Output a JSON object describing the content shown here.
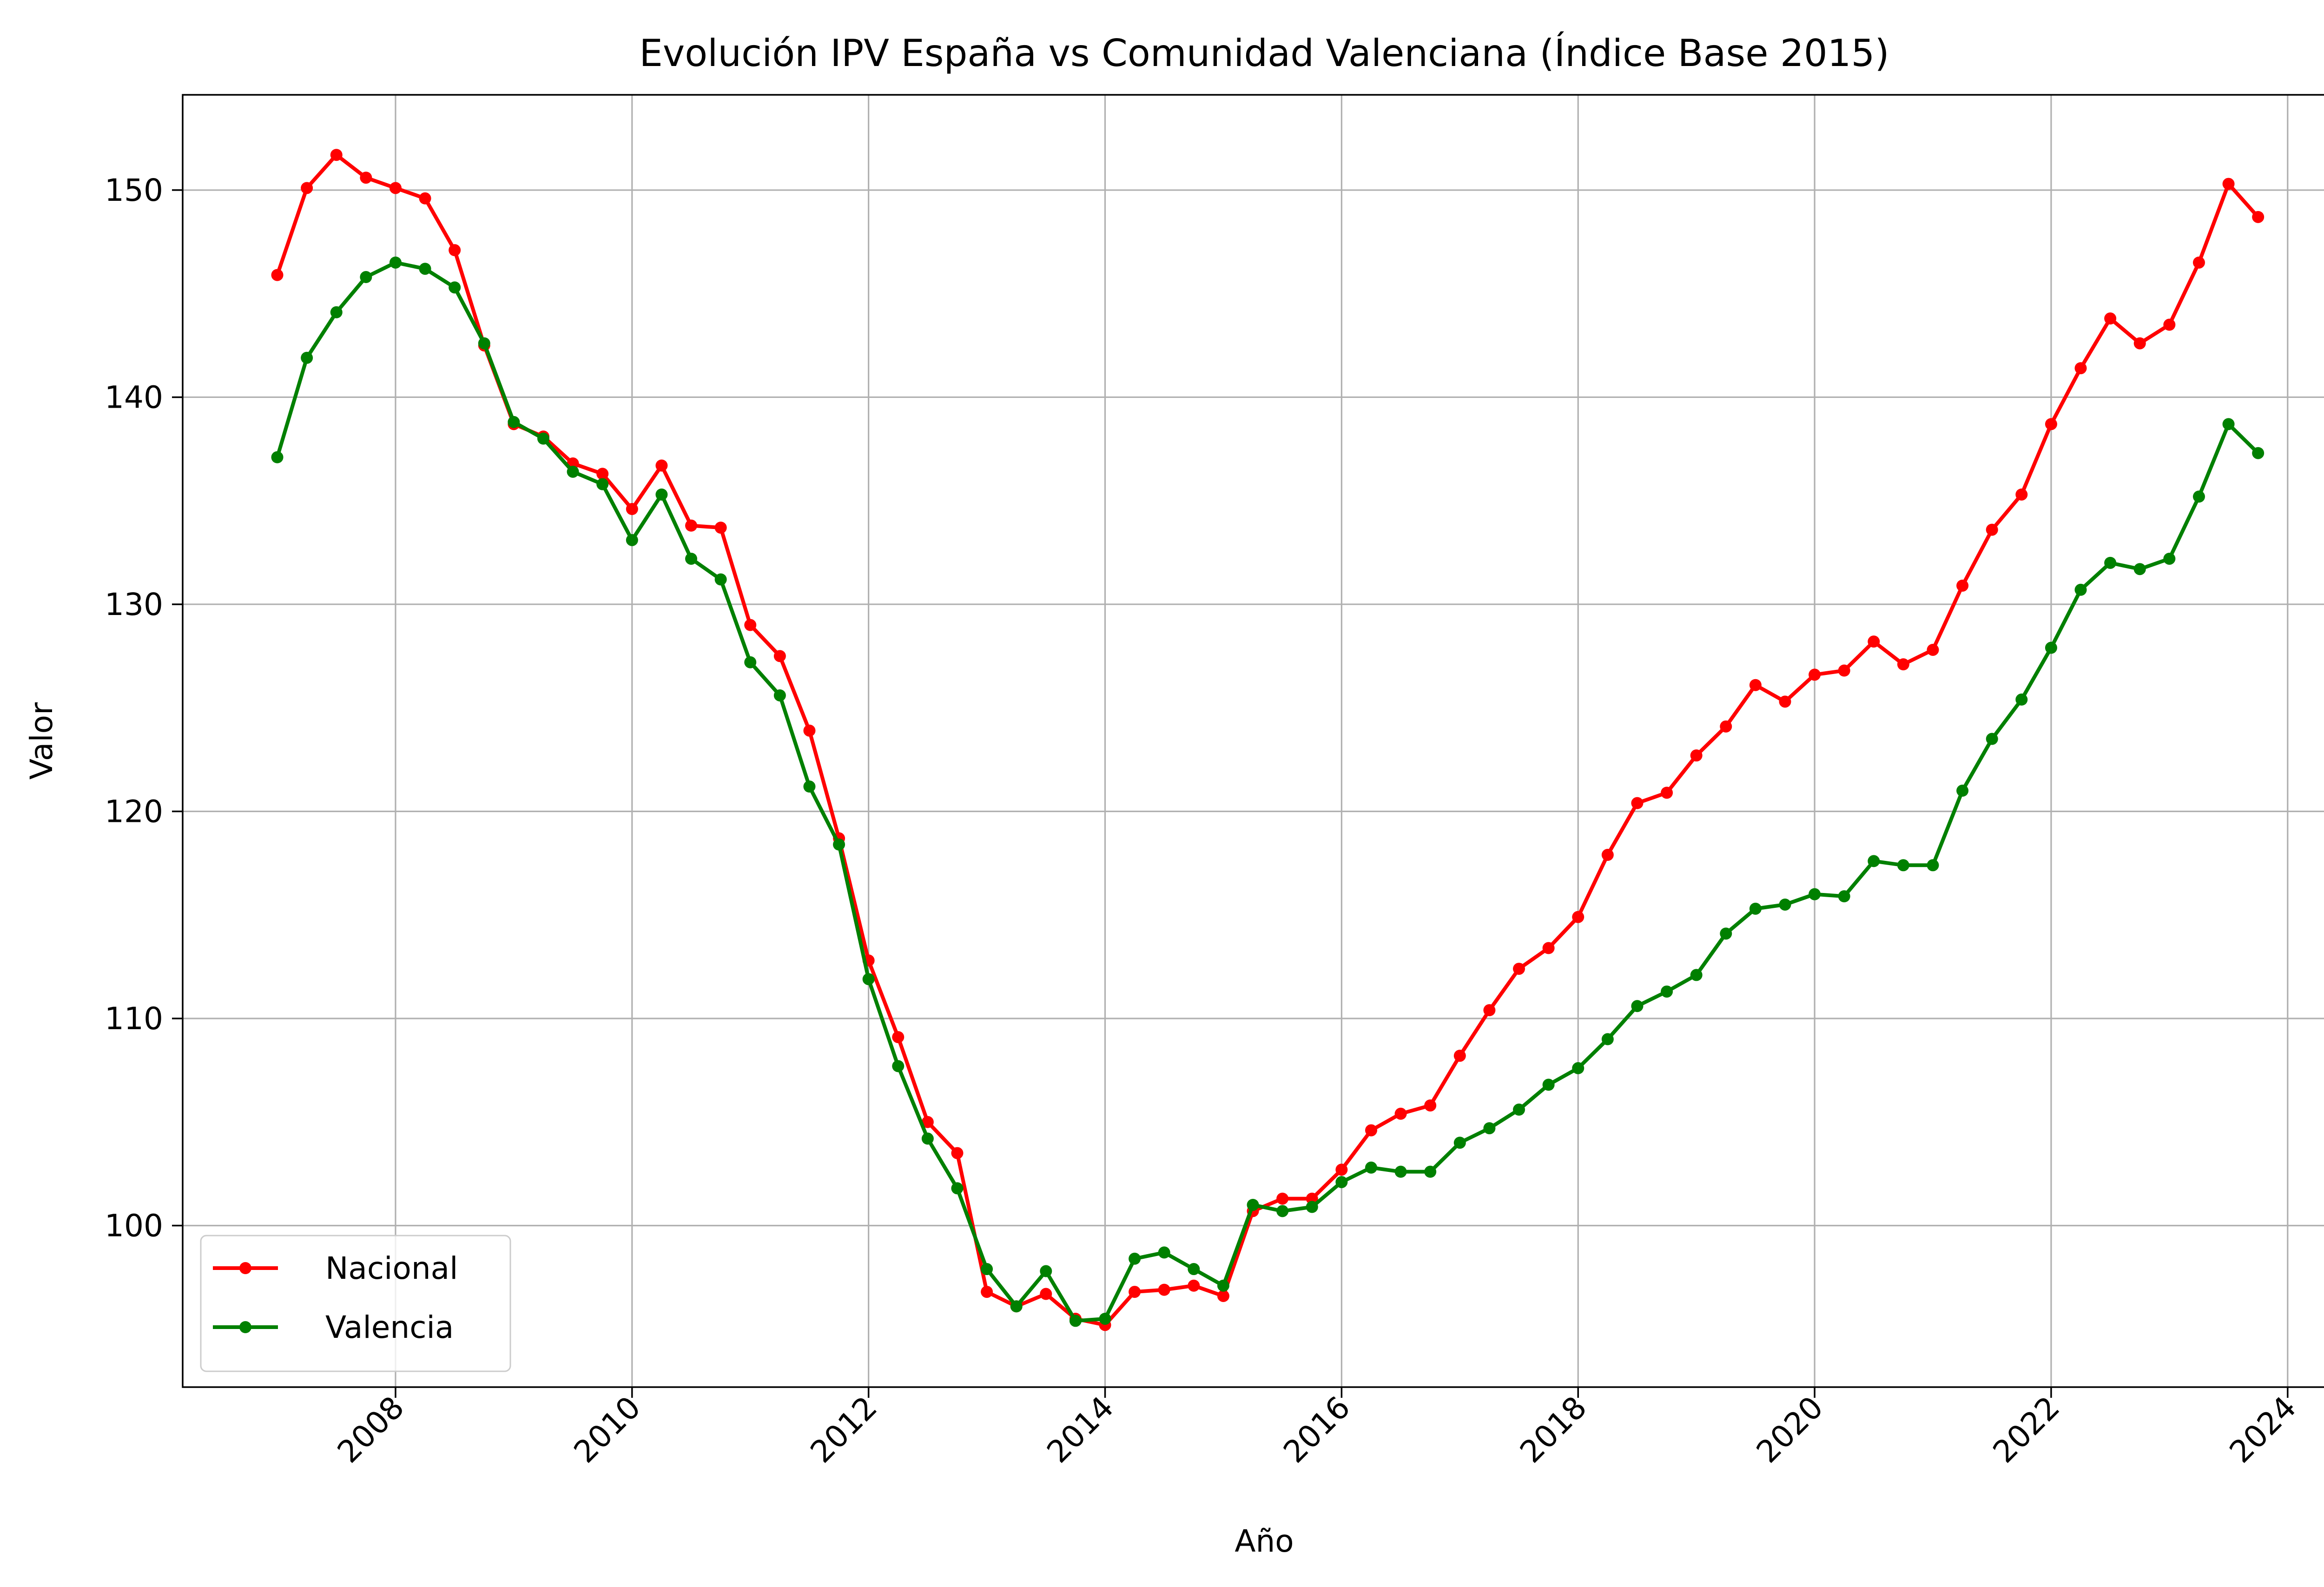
{
  "chart_data": {
    "type": "line",
    "title": "Evolución IPV España vs Comunidad Valenciana (Índice Base 2015)",
    "xlabel": "Año",
    "ylabel": "Valor",
    "xlim": [
      2006.2,
      2024.5
    ],
    "ylim": [
      92.2,
      154.6
    ],
    "x_ticks": [
      2008,
      2010,
      2012,
      2014,
      2016,
      2018,
      2020,
      2022,
      2024
    ],
    "x_tick_labels": [
      "2008",
      "2010",
      "2012",
      "2014",
      "2016",
      "2018",
      "2020",
      "2022",
      "2024"
    ],
    "y_ticks": [
      100,
      110,
      120,
      130,
      140,
      150
    ],
    "y_tick_labels": [
      "100",
      "110",
      "120",
      "130",
      "140",
      "150"
    ],
    "grid": true,
    "legend_position": "lower-left",
    "x": [
      2007.0,
      2007.25,
      2007.5,
      2007.75,
      2008.0,
      2008.25,
      2008.5,
      2008.75,
      2009.0,
      2009.25,
      2009.5,
      2009.75,
      2010.0,
      2010.25,
      2010.5,
      2010.75,
      2011.0,
      2011.25,
      2011.5,
      2011.75,
      2012.0,
      2012.25,
      2012.5,
      2012.75,
      2013.0,
      2013.25,
      2013.5,
      2013.75,
      2014.0,
      2014.25,
      2014.5,
      2014.75,
      2015.0,
      2015.25,
      2015.5,
      2015.75,
      2016.0,
      2016.25,
      2016.5,
      2016.75,
      2017.0,
      2017.25,
      2017.5,
      2017.75,
      2018.0,
      2018.25,
      2018.5,
      2018.75,
      2019.0,
      2019.25,
      2019.5,
      2019.75,
      2020.0,
      2020.25,
      2020.5,
      2020.75,
      2021.0,
      2021.25,
      2021.5,
      2021.75,
      2022.0,
      2022.25,
      2022.5,
      2022.75,
      2023.0,
      2023.25,
      2023.5,
      2023.75
    ],
    "series": [
      {
        "name": "Nacional",
        "color": "#ff0000",
        "values": [
          145.9,
          150.1,
          151.7,
          150.6,
          150.1,
          149.6,
          147.1,
          142.5,
          138.7,
          138.1,
          136.8,
          136.3,
          134.6,
          136.7,
          133.8,
          133.7,
          129.0,
          127.5,
          123.9,
          118.7,
          112.8,
          109.1,
          105.0,
          103.5,
          96.8,
          96.1,
          96.7,
          95.5,
          95.2,
          96.8,
          96.9,
          97.1,
          96.6,
          100.7,
          101.3,
          101.3,
          102.7,
          104.6,
          105.4,
          105.8,
          108.2,
          110.4,
          112.4,
          113.4,
          114.9,
          117.9,
          120.4,
          120.9,
          122.7,
          124.1,
          126.1,
          125.3,
          126.6,
          126.8,
          128.2,
          127.1,
          127.8,
          130.9,
          133.6,
          135.3,
          138.7,
          141.4,
          143.8,
          142.6,
          143.5,
          146.5,
          150.3,
          148.7
        ]
      },
      {
        "name": "Valencia",
        "color": "#008000",
        "values": [
          137.1,
          141.9,
          144.1,
          145.8,
          146.5,
          146.2,
          145.3,
          142.6,
          138.8,
          138.0,
          136.4,
          135.8,
          133.1,
          135.3,
          132.2,
          131.2,
          127.2,
          125.6,
          121.2,
          118.4,
          111.9,
          107.7,
          104.2,
          101.8,
          97.9,
          96.1,
          97.8,
          95.4,
          95.5,
          98.4,
          98.7,
          97.9,
          97.1,
          101.0,
          100.7,
          100.9,
          102.1,
          102.8,
          102.6,
          102.6,
          104.0,
          104.7,
          105.6,
          106.8,
          107.6,
          109.0,
          110.6,
          111.3,
          112.1,
          114.1,
          115.3,
          115.5,
          116.0,
          115.9,
          117.6,
          117.4,
          117.4,
          121.0,
          123.5,
          125.4,
          127.9,
          130.7,
          132.0,
          131.7,
          132.2,
          135.2,
          138.7,
          137.3
        ]
      }
    ]
  }
}
